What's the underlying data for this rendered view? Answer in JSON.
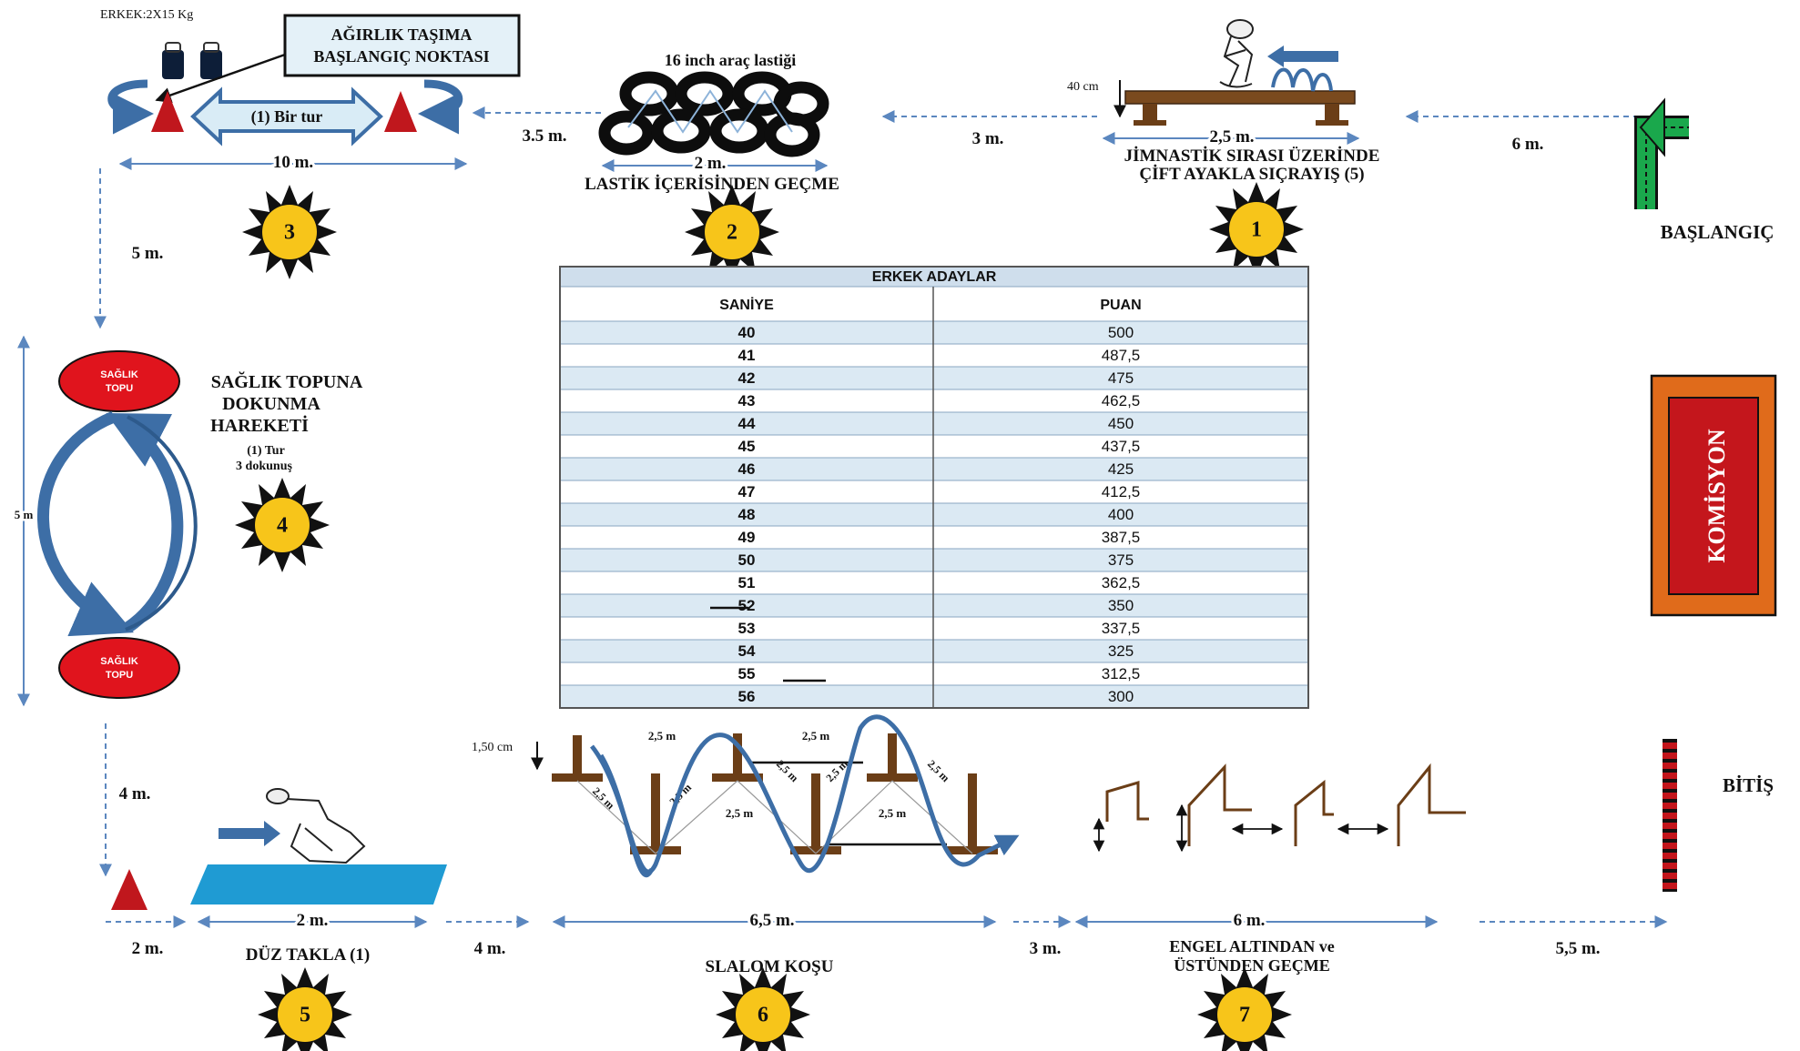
{
  "weights_note": "ERKEK:2X15 Kg",
  "station3": {
    "box_line1": "AĞIRLIK TAŞIMA",
    "box_line2": "BAŞLANGIÇ NOKTASI",
    "lap": "(1) Bir tur",
    "width": "10 m.",
    "number": "3"
  },
  "station2": {
    "tire_label": "16 inch araç lastiği",
    "width": "2 m.",
    "title": "LASTİK İÇERİSİNDEN GEÇME",
    "number": "2"
  },
  "station1": {
    "height": "40 cm",
    "width": "2,5 m.",
    "title_line1": "JİMNASTİK SIRASI ÜZERİNDE",
    "title_line2": "ÇİFT AYAKLA SIÇRAYIŞ (5)",
    "number": "1"
  },
  "start_label": "BAŞLANGIÇ",
  "top_distances": {
    "d_3_5": "3.5 m.",
    "d_3": "3 m.",
    "d_6": "6 m."
  },
  "left_distances": {
    "d_5": "5 m.",
    "d_4": "4 m.",
    "ball_span": "5 m"
  },
  "station4": {
    "ball_top": [
      "SAĞLIK",
      "TOPU"
    ],
    "ball_bottom": [
      "SAĞLIK",
      "TOPU"
    ],
    "title_line1": "SAĞLIK TOPUNA",
    "title_line2": "DOKUNMA",
    "title_line3": "HAREKETİ",
    "sub_line1": "(1) Tur",
    "sub_line2": "3 dokunuş",
    "number": "4"
  },
  "table": {
    "title": "ERKEK ADAYLAR",
    "headers": [
      "SANİYE",
      "PUAN"
    ],
    "rows": [
      [
        "40",
        "500"
      ],
      [
        "41",
        "487,5"
      ],
      [
        "42",
        "475"
      ],
      [
        "43",
        "462,5"
      ],
      [
        "44",
        "450"
      ],
      [
        "45",
        "437,5"
      ],
      [
        "46",
        "425"
      ],
      [
        "47",
        "412,5"
      ],
      [
        "48",
        "400"
      ],
      [
        "49",
        "387,5"
      ],
      [
        "50",
        "375"
      ],
      [
        "51",
        "362,5"
      ],
      [
        "52",
        "350"
      ],
      [
        "53",
        "337,5"
      ],
      [
        "54",
        "325"
      ],
      [
        "55",
        "312,5"
      ],
      [
        "56",
        "300"
      ]
    ]
  },
  "komisyon": "KOMİSYON",
  "finish_label": "BİTİŞ",
  "station5": {
    "width": "2 m.",
    "title": "DÜZ TAKLA (1)",
    "number": "5"
  },
  "station6": {
    "height": "1,50 cm",
    "gap": "2,5 m",
    "width": "6,5 m.",
    "title": "SLALOM KOŞU",
    "number": "6"
  },
  "station7": {
    "width": "6 m.",
    "title_line1": "ENGEL ALTINDAN ve",
    "title_line2": "ÜSTÜNDEN GEÇME",
    "number": "7"
  },
  "bottom_distances": {
    "d_2": "2 m.",
    "d_4": "4 m.",
    "d_3": "3 m.",
    "d_5_5": "5,5 m."
  },
  "colors": {
    "arrow_blue": "#3d6ea6",
    "dash_blue": "#5b87bf",
    "cone_red": "#c0171d",
    "tire_black": "#0d0d0d",
    "sun_yellow": "#f7c51a",
    "table_row_blue": "#dbe9f3",
    "table_header_blue": "#cfdeec",
    "bench_brown": "#7a4a1e",
    "start_green": "#1aa84c",
    "komisyon_orange": "#e06b1b",
    "komisyon_red": "#c4161c",
    "mat_blue": "#1f9bd3",
    "slalom_brown": "#6b3e17"
  }
}
